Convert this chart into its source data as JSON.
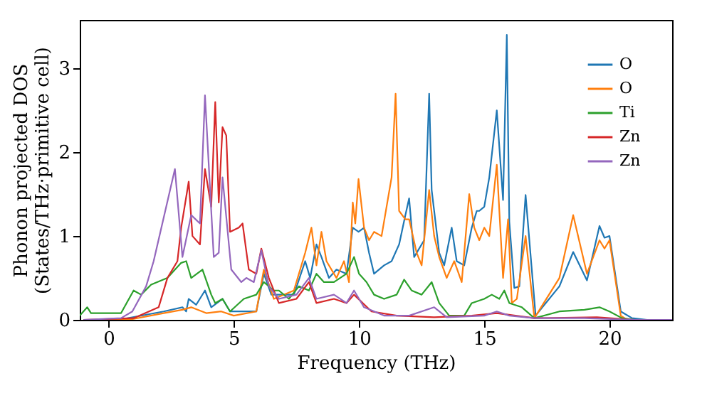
{
  "chart_data": {
    "type": "line",
    "xlabel": "Frequency (THz)",
    "ylabel": "Phonon projected DOS\n(States/THz·primitive cell)",
    "xlim": [
      -1.15,
      22.5
    ],
    "ylim": [
      0,
      3.58
    ],
    "xticks": [
      0,
      5,
      10,
      15,
      20
    ],
    "yticks": [
      0,
      1,
      2,
      3
    ],
    "legend": "top right",
    "grid": false,
    "series": [
      {
        "name": "O",
        "color": "#1f77b4",
        "x": [
          -1,
          0.4,
          2.2,
          2.95,
          3.1,
          3.2,
          3.5,
          3.85,
          4.1,
          4.55,
          4.85,
          5.9,
          6.2,
          6.5,
          7.4,
          7.85,
          8.05,
          8.3,
          8.5,
          8.8,
          9.1,
          9.5,
          9.75,
          9.98,
          10.2,
          10.4,
          10.6,
          11,
          11.3,
          11.6,
          11.85,
          12,
          12.2,
          12.6,
          12.8,
          12.9,
          13.2,
          13.4,
          13.7,
          13.9,
          14.2,
          14.5,
          14.7,
          14.8,
          15,
          15.2,
          15.5,
          15.75,
          15.9,
          16,
          16.2,
          16.4,
          16.65,
          17.05,
          18,
          18.55,
          19.1,
          19.6,
          19.8,
          20,
          20.45,
          20.9,
          21.5,
          22.5
        ],
        "values": [
          0,
          0,
          0.1,
          0.15,
          0.1,
          0.25,
          0.18,
          0.35,
          0.15,
          0.25,
          0.1,
          0.1,
          0.55,
          0.3,
          0.3,
          0.7,
          0.5,
          0.9,
          0.75,
          0.5,
          0.6,
          0.55,
          1.1,
          1.05,
          1.1,
          0.8,
          0.55,
          0.65,
          0.7,
          0.9,
          1.25,
          1.45,
          0.75,
          0.95,
          2.7,
          1.55,
          0.8,
          0.65,
          1.1,
          0.7,
          0.65,
          1.1,
          1.3,
          1.3,
          1.35,
          1.7,
          2.5,
          1.43,
          3.4,
          1.17,
          0.38,
          0.4,
          1.49,
          0.05,
          0.4,
          0.81,
          0.47,
          1.12,
          0.98,
          1,
          0.1,
          0.02,
          0,
          0
        ]
      },
      {
        "name": "O",
        "color": "#ff7f0e",
        "x": [
          -1,
          0.8,
          2.2,
          2.95,
          3.3,
          3.9,
          4.5,
          5,
          5.9,
          6.2,
          6.6,
          7.4,
          7.85,
          8.1,
          8.3,
          8.5,
          8.7,
          9.1,
          9.4,
          9.6,
          9.75,
          9.85,
          9.98,
          10.2,
          10.4,
          10.6,
          10.9,
          11.3,
          11.46,
          11.6,
          11.85,
          12,
          12.3,
          12.5,
          12.8,
          13,
          13.2,
          13.5,
          13.8,
          14.1,
          14.4,
          14.6,
          14.8,
          15,
          15.2,
          15.5,
          15.75,
          15.95,
          16.1,
          16.3,
          16.65,
          17,
          18,
          18.55,
          19.1,
          19.6,
          19.8,
          20,
          20.45,
          20.7,
          22.5
        ],
        "values": [
          0,
          0,
          0.08,
          0.12,
          0.15,
          0.08,
          0.1,
          0.05,
          0.1,
          0.6,
          0.25,
          0.35,
          0.8,
          1.1,
          0.65,
          1.05,
          0.7,
          0.5,
          0.7,
          0.45,
          1.4,
          1.15,
          1.68,
          1.1,
          0.95,
          1.05,
          1,
          1.7,
          2.7,
          1.3,
          1.2,
          1.2,
          0.8,
          0.65,
          1.55,
          1,
          0.75,
          0.5,
          0.7,
          0.45,
          1.5,
          1.1,
          0.95,
          1.1,
          1,
          1.85,
          0.5,
          1.2,
          0.2,
          0.25,
          1,
          0.02,
          0.5,
          1.25,
          0.55,
          0.95,
          0.85,
          0.95,
          0.05,
          0,
          0
        ]
      },
      {
        "name": "Ti",
        "color": "#2ca02c",
        "x": [
          -1.15,
          -0.85,
          -0.7,
          0.5,
          1,
          1.3,
          1.7,
          2.35,
          2.9,
          3.1,
          3.3,
          3.75,
          4.1,
          4.26,
          4.55,
          4.85,
          5.4,
          5.9,
          6.2,
          6.6,
          6.8,
          7.2,
          7.6,
          8,
          8.3,
          8.6,
          9,
          9.5,
          9.8,
          10,
          10.3,
          10.6,
          11,
          11.5,
          11.8,
          12.1,
          12.5,
          12.9,
          13.2,
          13.6,
          14.2,
          14.5,
          15,
          15.3,
          15.6,
          15.8,
          16,
          16.5,
          17,
          18,
          19,
          19.6,
          20,
          20.5,
          21,
          22.5
        ],
        "values": [
          0.05,
          0.15,
          0.08,
          0.08,
          0.35,
          0.3,
          0.42,
          0.5,
          0.68,
          0.7,
          0.5,
          0.6,
          0.3,
          0.2,
          0.25,
          0.1,
          0.25,
          0.3,
          0.45,
          0.35,
          0.35,
          0.25,
          0.4,
          0.35,
          0.55,
          0.45,
          0.45,
          0.55,
          0.75,
          0.55,
          0.45,
          0.3,
          0.25,
          0.3,
          0.48,
          0.35,
          0.3,
          0.45,
          0.2,
          0.05,
          0.05,
          0.2,
          0.25,
          0.3,
          0.25,
          0.35,
          0.2,
          0.15,
          0.02,
          0.1,
          0.12,
          0.15,
          0.1,
          0.02,
          0,
          0
        ]
      },
      {
        "name": "Zn",
        "color": "#d62728",
        "x": [
          -1,
          1,
          2,
          2.35,
          2.75,
          2.9,
          3.2,
          3.35,
          3.65,
          3.85,
          4.1,
          4.26,
          4.4,
          4.55,
          4.7,
          4.85,
          5.2,
          5.35,
          5.6,
          5.9,
          6.1,
          6.4,
          6.8,
          7.5,
          8,
          8.3,
          9,
          9.5,
          9.8,
          10.5,
          11.5,
          13,
          14.5,
          15.5,
          17,
          19.5,
          21,
          22.5
        ],
        "values": [
          0,
          0.02,
          0.15,
          0.5,
          0.7,
          1.1,
          1.65,
          1,
          0.9,
          1.8,
          1.35,
          2.6,
          1.4,
          2.3,
          2.2,
          1.05,
          1.1,
          1.15,
          0.6,
          0.55,
          0.85,
          0.5,
          0.2,
          0.25,
          0.45,
          0.2,
          0.25,
          0.2,
          0.3,
          0.1,
          0.05,
          0.03,
          0.05,
          0.08,
          0.02,
          0.03,
          0,
          0
        ]
      },
      {
        "name": "Zn",
        "color": "#9467bd",
        "x": [
          -1,
          0.5,
          0.95,
          1.5,
          1.8,
          2.65,
          2.95,
          3.3,
          3.65,
          3.85,
          4.1,
          4.2,
          4.4,
          4.55,
          4.9,
          5.3,
          5.5,
          5.8,
          6.1,
          6.4,
          6.8,
          7.5,
          8,
          8.3,
          9,
          9.5,
          9.8,
          10.2,
          11,
          12,
          13,
          13.5,
          15,
          15.5,
          16,
          17,
          19,
          21,
          22.5
        ],
        "values": [
          0,
          0.02,
          0.1,
          0.4,
          0.7,
          1.8,
          0.75,
          1.25,
          1.15,
          2.68,
          1.3,
          0.75,
          0.8,
          1.7,
          0.6,
          0.45,
          0.5,
          0.45,
          0.83,
          0.4,
          0.25,
          0.3,
          0.5,
          0.25,
          0.3,
          0.2,
          0.35,
          0.15,
          0.05,
          0.05,
          0.15,
          0.03,
          0.05,
          0.1,
          0.05,
          0.02,
          0.02,
          0,
          0
        ]
      }
    ]
  }
}
